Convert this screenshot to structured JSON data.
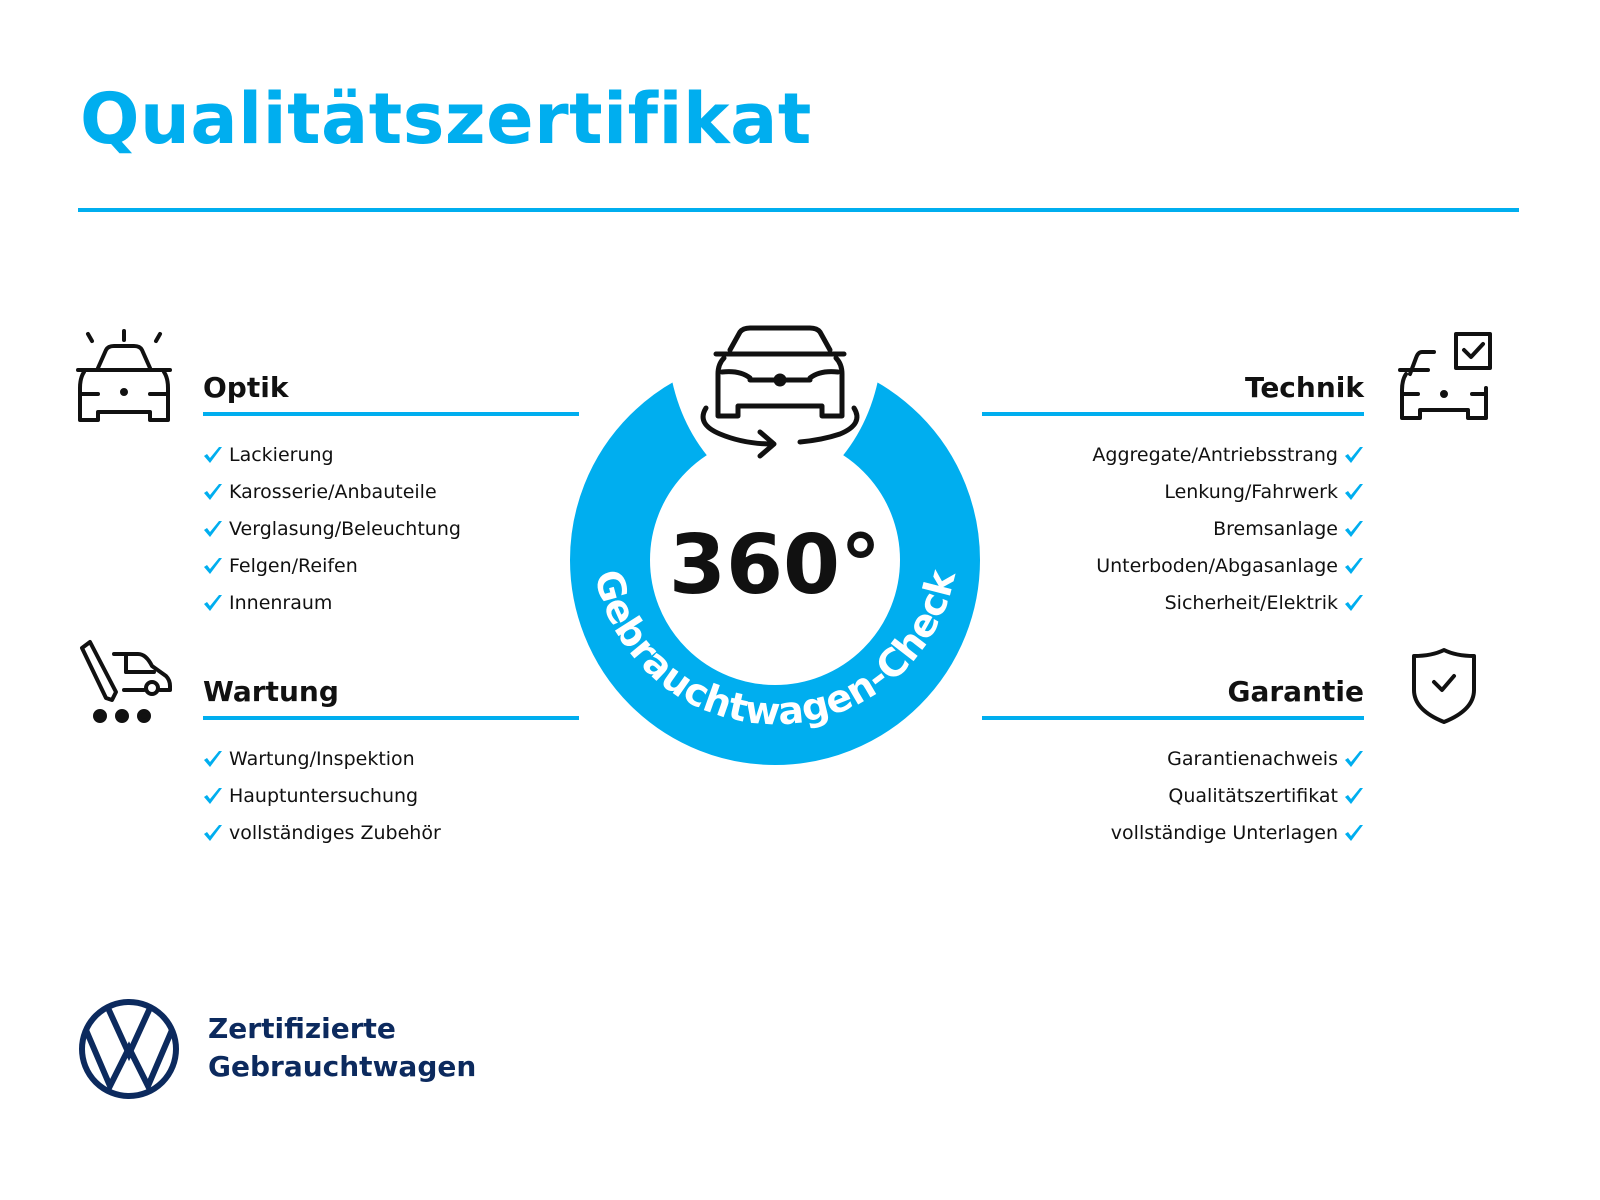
{
  "title": "Qualitätszertifikat",
  "colors": {
    "accent": "#00aeef",
    "brand_navy": "#0c2a5e",
    "text": "#111111"
  },
  "badge": {
    "big_text": "360°",
    "ring_text": "Gebrauchtwagen-Check",
    "icon": "car-rotate-360-icon"
  },
  "sections": {
    "optik": {
      "title": "Optik",
      "icon": "car-shine-icon",
      "items": [
        "Lackierung",
        "Karosserie/Anbauteile",
        "Verglasung/Beleuchtung",
        "Felgen/Reifen",
        "Innenraum"
      ]
    },
    "wartung": {
      "title": "Wartung",
      "icon": "car-service-icon",
      "items": [
        "Wartung/Inspektion",
        "Hauptuntersuchung",
        "vollständiges Zubehör"
      ]
    },
    "technik": {
      "title": "Technik",
      "icon": "car-checkbox-icon",
      "items": [
        "Aggregate/Antriebsstrang",
        "Lenkung/Fahrwerk",
        "Bremsanlage",
        "Unterboden/Abgasanlage",
        "Sicherheit/Elektrik"
      ]
    },
    "garantie": {
      "title": "Garantie",
      "icon": "shield-check-icon",
      "items": [
        "Garantienachweis",
        "Qualitätszertifikat",
        "vollständige Unterlagen"
      ]
    }
  },
  "footer": {
    "line1": "Zertifizierte",
    "line2": "Gebrauchtwagen",
    "logo": "vw-logo"
  }
}
